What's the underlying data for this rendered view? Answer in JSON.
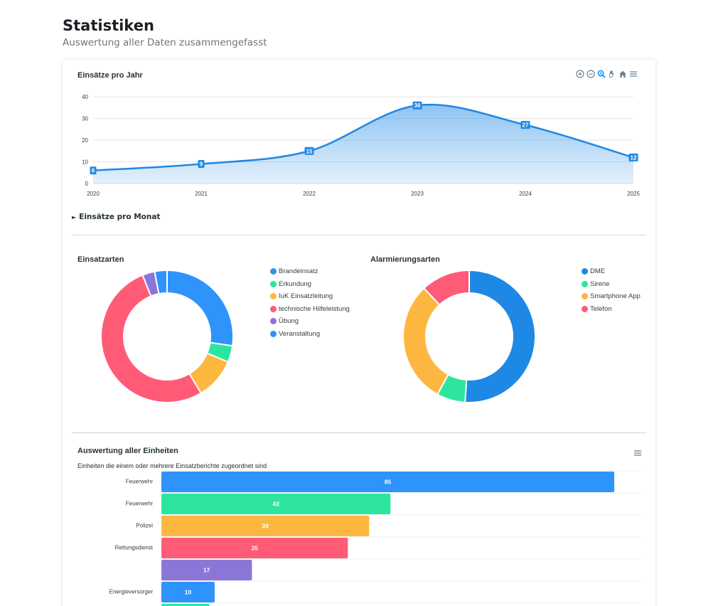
{
  "page": {
    "title": "Statistiken",
    "subtitle": "Auswertung aller Daten zusammengefasst"
  },
  "toolbar_icons": [
    "zoom-in-icon",
    "zoom-out-icon",
    "selection-zoom-icon",
    "pan-icon",
    "home-icon",
    "menu-icon"
  ],
  "yearly": {
    "title": "Einsätze pro Jahr",
    "chart_data": {
      "type": "area",
      "title": "Einsätze pro Jahr",
      "x": [
        "2020",
        "2021",
        "2022",
        "2023",
        "2024",
        "2025"
      ],
      "series": [
        {
          "values": [
            6,
            9,
            15,
            36,
            27,
            12
          ]
        }
      ],
      "ylim": [
        0,
        40
      ],
      "yticks": [
        0,
        10,
        20,
        30,
        40
      ],
      "grid": true,
      "color": "#1e88e5"
    }
  },
  "monthly": {
    "label": "Einsätze pro Monat",
    "expanded": false
  },
  "einsatzarten": {
    "title": "Einsatzarten",
    "chart_data": {
      "type": "pie",
      "title": "Einsatzarten",
      "labels": [
        "Brandeinsatz",
        "Erkundung",
        "IuK Einsatzleitung",
        "technische Hilfeleistung",
        "Übung",
        "Veranstaltung"
      ],
      "values": [
        27,
        4,
        10,
        52,
        3,
        3
      ],
      "colors": [
        "#2e93fa",
        "#2ee59d",
        "#fdb740",
        "#ff5b77",
        "#8b75d7",
        "#2e93fa"
      ]
    }
  },
  "alarmierungsarten": {
    "title": "Alarmierungsarten",
    "chart_data": {
      "type": "pie",
      "title": "Alarmierungsarten",
      "labels": [
        "DME",
        "Sirene",
        "Smartphone App",
        "Telefon"
      ],
      "values": [
        51,
        7,
        30,
        12
      ],
      "colors": [
        "#1e88e5",
        "#2ee59d",
        "#fdb740",
        "#ff5b77"
      ]
    }
  },
  "units": {
    "title": "Auswertung aller Einheiten",
    "subtitle": "Einheiten die einem oder mehrere Einsatzberichte zugeordnet sind",
    "chart_data": {
      "type": "bar",
      "orientation": "horizontal",
      "title": "Auswertung aller Einheiten",
      "categories": [
        "Feuerwehr",
        "Feuerwehr",
        "Polizei",
        "Rettungsdienst",
        "",
        "Energieversorger",
        ""
      ],
      "values": [
        85,
        43,
        39,
        35,
        17,
        10,
        9
      ],
      "colors": [
        "#2e93fa",
        "#2ee59d",
        "#fdb740",
        "#ff5b77",
        "#8b75d7",
        "#2e93fa",
        "#2ee59d"
      ],
      "xlim": [
        0,
        90
      ]
    }
  }
}
